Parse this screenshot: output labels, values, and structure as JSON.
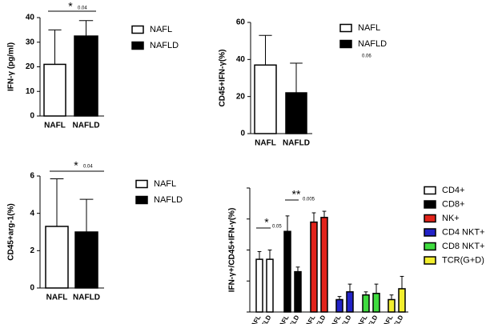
{
  "chart_data": [
    {
      "type": "bar",
      "y_label": "IFN-γ (pg/ml)",
      "categories": [
        "NAFL",
        "NAFLD"
      ],
      "values": [
        21,
        32.5
      ],
      "errors": [
        14,
        6.3
      ],
      "colors": [
        "#ffffff",
        "#000000"
      ],
      "ylim": [
        0,
        40
      ],
      "yticks": [
        0,
        10,
        20,
        30,
        40
      ],
      "significance": [
        {
          "mark": "*",
          "p_value": 0.04
        }
      ]
    },
    {
      "type": "bar",
      "y_label": "CD45+IFN-γ(%)",
      "categories": [
        "NAFL",
        "NAFLD"
      ],
      "values": [
        37,
        22
      ],
      "errors": [
        16,
        16
      ],
      "colors": [
        "#ffffff",
        "#000000"
      ],
      "ylim": [
        0,
        60
      ],
      "yticks": [
        0,
        20,
        40,
        60
      ],
      "significance": [
        {
          "p_value": 0.06
        }
      ]
    },
    {
      "type": "bar",
      "y_label": "CD45+arg-1(%)",
      "categories": [
        "NAFL",
        "NAFLD"
      ],
      "values": [
        3.3,
        3.0
      ],
      "errors": [
        2.55,
        1.75
      ],
      "colors": [
        "#ffffff",
        "#000000"
      ],
      "ylim": [
        0,
        6
      ],
      "yticks": [
        0,
        2,
        4,
        6
      ],
      "significance": [
        {
          "mark": "*",
          "p_value": 0.04
        }
      ]
    },
    {
      "type": "bar",
      "y_label": "IFN-γ+/CD45+IFN-γ(%)",
      "categories": [
        "NAFL",
        "NAFLD"
      ],
      "ylim": [
        0,
        40
      ],
      "yticks": [
        0,
        10,
        20,
        30,
        40
      ],
      "series": [
        {
          "name": "CD4+",
          "color": "#ffffff",
          "values": [
            17,
            17
          ],
          "errors": [
            2.5,
            3
          ]
        },
        {
          "name": "CD8+",
          "color": "#000000",
          "values": [
            26,
            13
          ],
          "errors": [
            5,
            1.5
          ]
        },
        {
          "name": "NK+",
          "color": "#e3241b",
          "values": [
            29,
            30.5
          ],
          "errors": [
            3,
            2
          ]
        },
        {
          "name": "CD4 NKT+",
          "color": "#2323c8",
          "values": [
            4,
            6.5
          ],
          "errors": [
            1,
            2.5
          ]
        },
        {
          "name": "CD8 NKT+",
          "color": "#3fdc3f",
          "values": [
            5.5,
            6
          ],
          "errors": [
            1,
            3
          ]
        },
        {
          "name": "TCR(G+D)",
          "color": "#f2ee2e",
          "values": [
            4,
            7.5
          ],
          "errors": [
            1.5,
            4
          ]
        }
      ],
      "significance": [
        {
          "mark": "*",
          "p_value": 0.05
        },
        {
          "mark": "**",
          "p_value": 0.005
        }
      ]
    }
  ]
}
